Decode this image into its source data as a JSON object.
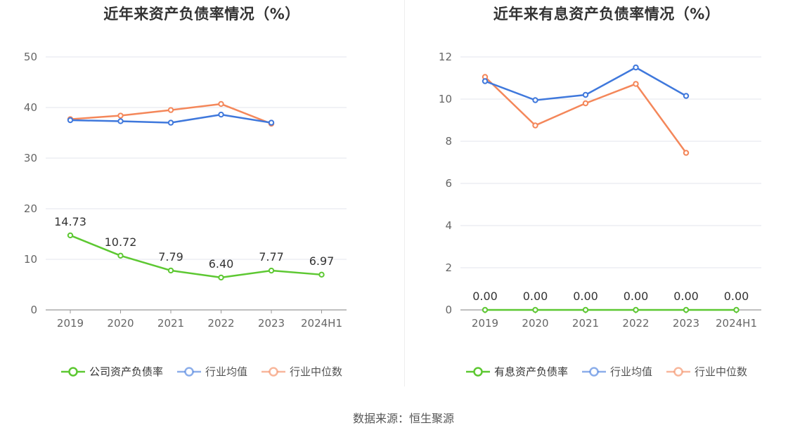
{
  "source": "数据来源：恒生聚源",
  "chart_data": [
    {
      "type": "line",
      "title": "近年来资产负债率情况（%）",
      "categories": [
        "2019",
        "2020",
        "2021",
        "2022",
        "2023",
        "2024H1"
      ],
      "ylim": [
        0,
        50
      ],
      "yticks": [
        0,
        10,
        20,
        30,
        40,
        50
      ],
      "grid": true,
      "legend_position": "bottom",
      "series": [
        {
          "name": "公司资产负债率",
          "color": "#5dc832",
          "values": [
            14.73,
            10.72,
            7.79,
            6.4,
            7.77,
            6.97
          ],
          "labels": [
            "14.73",
            "10.72",
            "7.79",
            "6.40",
            "7.77",
            "6.97"
          ]
        },
        {
          "name": "行业均值",
          "color": "#3f78dc",
          "values": [
            37.5,
            37.3,
            37.0,
            38.6,
            37.0,
            null
          ]
        },
        {
          "name": "行业中位数",
          "color": "#f4875a",
          "values": [
            37.7,
            38.4,
            39.5,
            40.7,
            36.8,
            null
          ]
        }
      ]
    },
    {
      "type": "line",
      "title": "近年来有息资产负债率情况（%）",
      "categories": [
        "2019",
        "2020",
        "2021",
        "2022",
        "2023",
        "2024H1"
      ],
      "ylim": [
        0,
        12
      ],
      "yticks": [
        0,
        2,
        4,
        6,
        8,
        10,
        12
      ],
      "grid": true,
      "legend_position": "bottom",
      "series": [
        {
          "name": "有息资产负债率",
          "color": "#5dc832",
          "values": [
            0.0,
            0.0,
            0.0,
            0.0,
            0.0,
            0.0
          ],
          "labels": [
            "0.00",
            "0.00",
            "0.00",
            "0.00",
            "0.00",
            "0.00"
          ]
        },
        {
          "name": "行业均值",
          "color": "#3f78dc",
          "values": [
            10.85,
            9.95,
            10.2,
            11.5,
            10.15,
            null
          ]
        },
        {
          "name": "行业中位数",
          "color": "#f4875a",
          "values": [
            11.05,
            8.75,
            9.8,
            10.72,
            7.45,
            null
          ]
        }
      ]
    }
  ]
}
